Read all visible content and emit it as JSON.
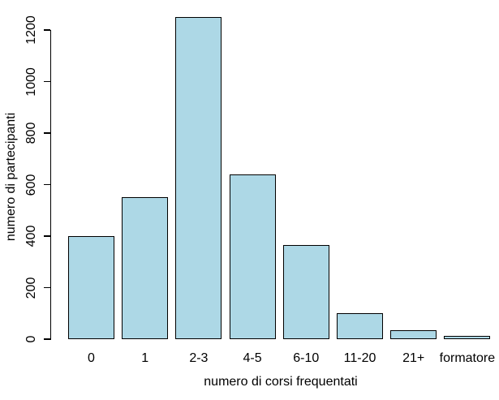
{
  "chart_data": {
    "type": "bar",
    "title": "",
    "categories": [
      "0",
      "1",
      "2-3",
      "4-5",
      "6-10",
      "11-20",
      "21+",
      "formatore"
    ],
    "values": [
      400,
      550,
      1250,
      640,
      365,
      100,
      35,
      13
    ],
    "xlabel": "numero di corsi frequentati",
    "ylabel": "numero di partecipanti",
    "ylim": [
      0,
      1200
    ],
    "y_ticks": [
      0,
      200,
      400,
      600,
      800,
      1000,
      1200
    ],
    "grid": false,
    "legend_position": "none",
    "colors": {
      "bar_fill": "#ADD8E6",
      "bar_border": "#000000",
      "axis": "#000000",
      "text": "#000000",
      "background": "#FFFFFF"
    }
  }
}
